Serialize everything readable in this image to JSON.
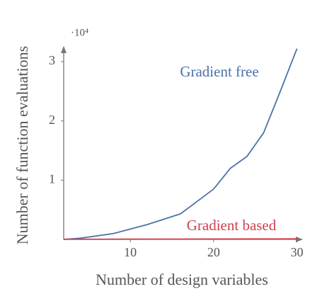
{
  "chart_data": {
    "type": "line",
    "x_label": "Number of design variables",
    "y_label": "Number of function evaluations",
    "y_multiplier": "·10⁴",
    "x": [
      2,
      4,
      8,
      12,
      16,
      20,
      22,
      24,
      26,
      28,
      30
    ],
    "series": [
      {
        "name": "Gradient free",
        "color": "#4a72a8",
        "values": [
          0,
          0.02,
          0.1,
          0.25,
          0.43,
          0.85,
          1.2,
          1.4,
          1.8,
          2.5,
          3.22
        ]
      },
      {
        "name": "Gradient based",
        "color": "#d0404f",
        "values": [
          0.003,
          0.003,
          0.004,
          0.005,
          0.006,
          0.007,
          0.007,
          0.008,
          0.008,
          0.009,
          0.01
        ]
      }
    ],
    "xlim": [
      2,
      30
    ],
    "xticks": [
      10,
      20,
      30
    ],
    "ylim": [
      0,
      3.3
    ],
    "yticks": [
      1,
      2,
      3
    ],
    "grid": false
  }
}
